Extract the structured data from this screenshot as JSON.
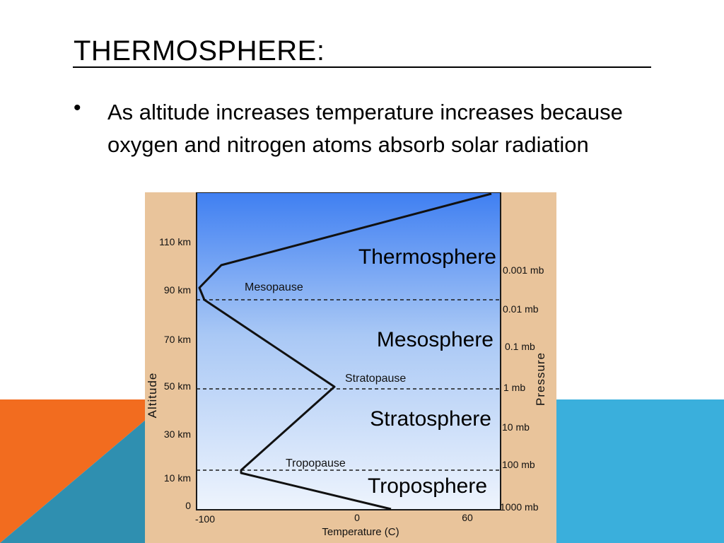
{
  "slide": {
    "title": "THERMOSPHERE:",
    "bullet_marker": "•",
    "bullet_text": "As altitude increases temperature increases because oxygen and nitrogen atoms absorb solar radiation"
  },
  "colors": {
    "accent_orange": "#f26c1f",
    "accent_blue": "#3aafdc",
    "accent_teal": "#2f8fb0",
    "diagram_frame": "#e9c49b",
    "sky_top": "#3f7ff2",
    "sky_bottom": "#eef4fd"
  },
  "diagram": {
    "altitude_axis": {
      "label": "Altitude",
      "ticks": [
        "110 km",
        "90 km",
        "70 km",
        "50 km",
        "30 km",
        "10 km",
        "0"
      ]
    },
    "temperature_axis": {
      "label": "Temperature (C)",
      "ticks": [
        "-100",
        "0",
        "60"
      ]
    },
    "pressure_axis": {
      "label": "Pressure",
      "ticks": [
        "0.001 mb",
        "0.01 mb",
        "0.1 mb",
        "1 mb",
        "10 mb",
        "100 mb",
        "1000 mb"
      ]
    },
    "layers": [
      "Thermosphere",
      "Mesosphere",
      "Stratosphere",
      "Troposphere"
    ],
    "boundaries": [
      "Mesopause",
      "Stratopause",
      "Tropopause"
    ]
  }
}
